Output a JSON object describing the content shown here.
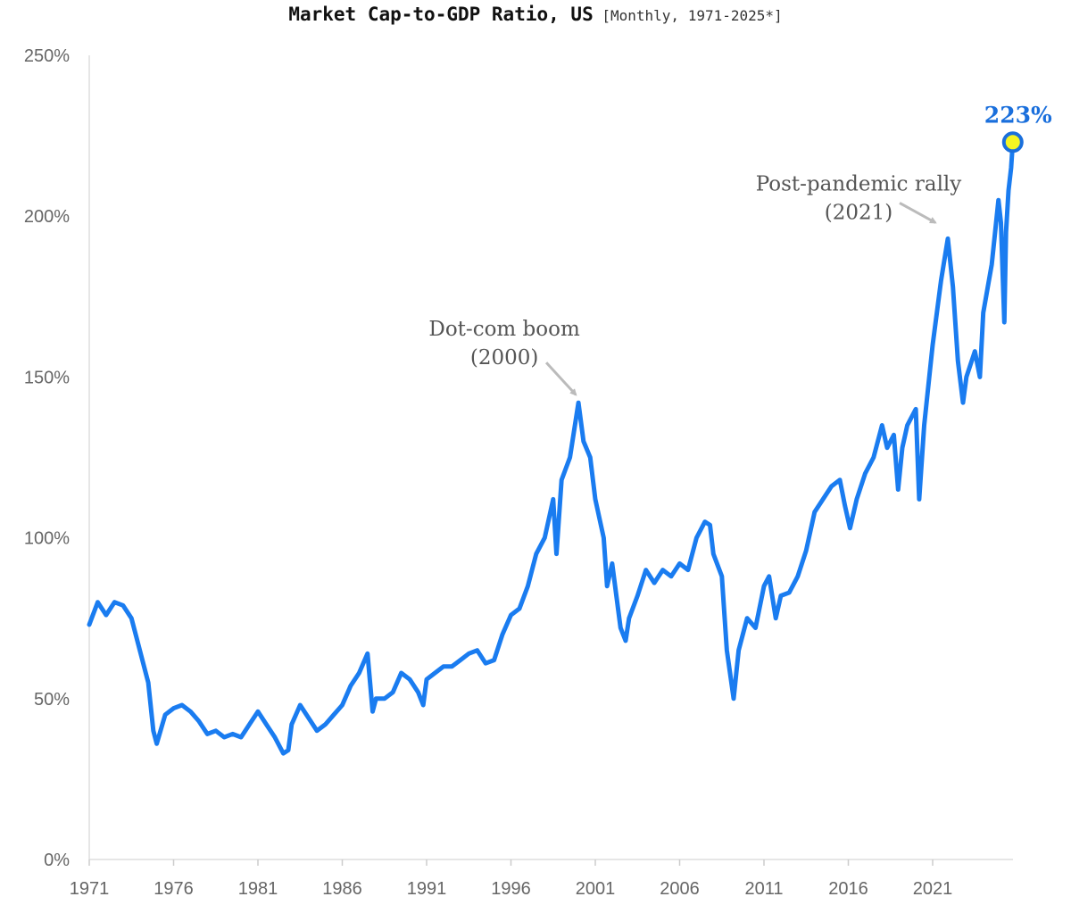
{
  "chart_data": {
    "type": "line",
    "title": "Market Cap-to-GDP Ratio, US",
    "subtitle": "[Monthly, 1971-2025*]",
    "xlabel": "",
    "ylabel": "",
    "ylim": [
      0,
      250
    ],
    "xlim": [
      1971,
      2025.75
    ],
    "x_ticks": [
      "1971",
      "1976",
      "1981",
      "1986",
      "1991",
      "1996",
      "2001",
      "2006",
      "2011",
      "2016",
      "2021"
    ],
    "y_ticks": [
      "0%",
      "50%",
      "100%",
      "150%",
      "200%",
      "250%"
    ],
    "grid": false,
    "line_color": "#1a7cf0",
    "marker_color": "#f5f522",
    "last_value_label": "223%",
    "annotations": [
      {
        "line1": "Dot-com boom",
        "line2": "(2000)",
        "x": 2000.0,
        "y": 142
      },
      {
        "line1": "Post-pandemic rally",
        "line2": "(2021)",
        "x": 2021.9,
        "y": 193
      }
    ],
    "series": [
      {
        "x": [
          1971.0,
          1971.5,
          1972.0,
          1972.5,
          1973.0,
          1973.5,
          1974.0,
          1974.5,
          1974.8,
          1975.0,
          1975.5,
          1976.0,
          1976.5,
          1977.0,
          1977.5,
          1978.0,
          1978.5,
          1979.0,
          1979.5,
          1980.0,
          1980.5,
          1981.0,
          1981.5,
          1982.0,
          1982.5,
          1982.8,
          1983.0,
          1983.5,
          1984.0,
          1984.5,
          1985.0,
          1985.5,
          1986.0,
          1986.5,
          1987.0,
          1987.5,
          1987.8,
          1988.0,
          1988.5,
          1989.0,
          1989.5,
          1990.0,
          1990.5,
          1990.8,
          1991.0,
          1991.5,
          1992.0,
          1992.5,
          1993.0,
          1993.5,
          1994.0,
          1994.5,
          1995.0,
          1995.5,
          1996.0,
          1996.5,
          1997.0,
          1997.5,
          1998.0,
          1998.5,
          1998.7,
          1999.0,
          1999.5,
          2000.0,
          2000.3,
          2000.7,
          2001.0,
          2001.5,
          2001.7,
          2002.0,
          2002.5,
          2002.8,
          2003.0,
          2003.5,
          2004.0,
          2004.5,
          2005.0,
          2005.5,
          2006.0,
          2006.5,
          2007.0,
          2007.5,
          2007.8,
          2008.0,
          2008.5,
          2008.8,
          2009.2,
          2009.5,
          2010.0,
          2010.5,
          2011.0,
          2011.3,
          2011.7,
          2012.0,
          2012.5,
          2013.0,
          2013.5,
          2014.0,
          2014.5,
          2015.0,
          2015.5,
          2015.8,
          2016.1,
          2016.5,
          2017.0,
          2017.5,
          2018.0,
          2018.3,
          2018.7,
          2018.95,
          2019.2,
          2019.5,
          2020.0,
          2020.2,
          2020.5,
          2020.8,
          2021.0,
          2021.5,
          2021.9,
          2022.2,
          2022.5,
          2022.8,
          2023.0,
          2023.5,
          2023.8,
          2024.0,
          2024.5,
          2024.9,
          2025.05,
          2025.25,
          2025.35,
          2025.5,
          2025.65,
          2025.75
        ],
        "y": [
          73,
          80,
          76,
          80,
          79,
          75,
          65,
          55,
          40,
          36,
          45,
          47,
          48,
          46,
          43,
          39,
          40,
          38,
          39,
          38,
          42,
          46,
          42,
          38,
          33,
          34,
          42,
          48,
          44,
          40,
          42,
          45,
          48,
          54,
          58,
          64,
          46,
          50,
          50,
          52,
          58,
          56,
          52,
          48,
          56,
          58,
          60,
          60,
          62,
          64,
          65,
          61,
          62,
          70,
          76,
          78,
          85,
          95,
          100,
          112,
          95,
          118,
          125,
          142,
          130,
          125,
          112,
          100,
          85,
          92,
          72,
          68,
          75,
          82,
          90,
          86,
          90,
          88,
          92,
          90,
          100,
          105,
          104,
          95,
          88,
          65,
          50,
          65,
          75,
          72,
          85,
          88,
          75,
          82,
          83,
          88,
          96,
          108,
          112,
          116,
          118,
          110,
          103,
          112,
          120,
          125,
          135,
          128,
          132,
          115,
          128,
          135,
          140,
          112,
          135,
          150,
          160,
          180,
          193,
          178,
          155,
          142,
          150,
          158,
          150,
          170,
          185,
          205,
          198,
          167,
          195,
          208,
          215,
          223
        ]
      }
    ]
  }
}
